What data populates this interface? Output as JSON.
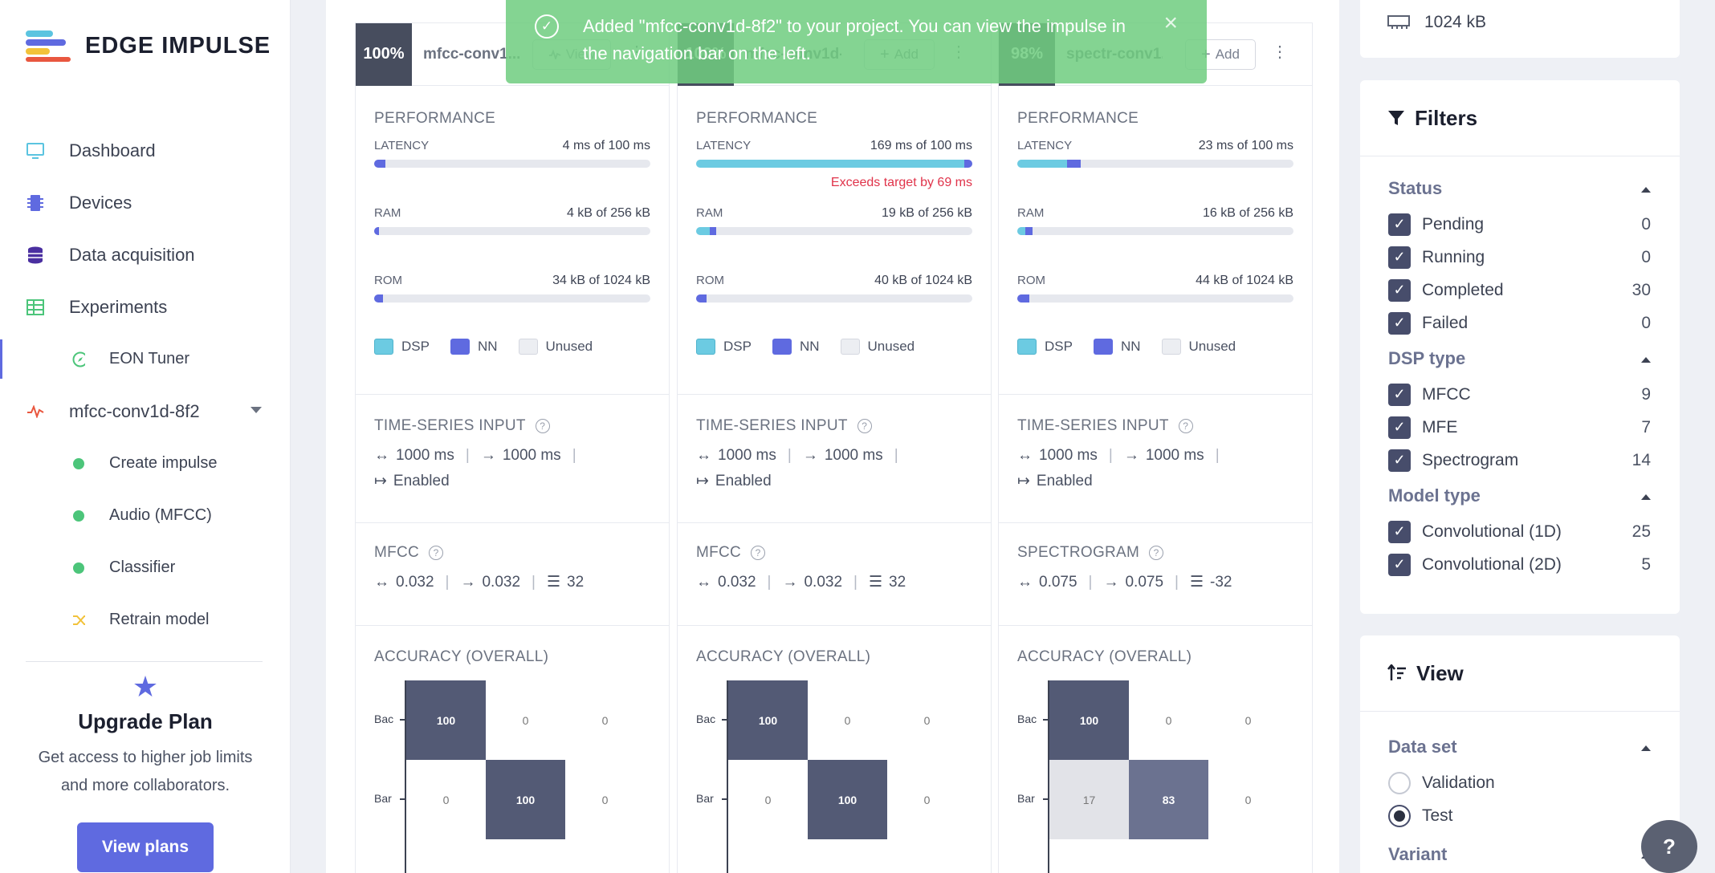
{
  "app": {
    "name": "EDGE IMPULSE"
  },
  "sidebar": {
    "items": [
      {
        "label": "Dashboard",
        "icon": "monitor-icon"
      },
      {
        "label": "Devices",
        "icon": "chip-icon"
      },
      {
        "label": "Data acquisition",
        "icon": "database-icon"
      },
      {
        "label": "Experiments",
        "icon": "table-icon"
      },
      {
        "label": "EON Tuner",
        "icon": "compass-icon"
      },
      {
        "label": "mfcc-conv1d-8f2",
        "icon": "pulse-icon"
      },
      {
        "label": "Create impulse"
      },
      {
        "label": "Audio (MFCC)"
      },
      {
        "label": "Classifier"
      },
      {
        "label": "Retrain model",
        "icon": "shuffle-icon"
      }
    ],
    "upgrade": {
      "title": "Upgrade Plan",
      "text": "Get access to higher job limits and more collaborators.",
      "button": "View plans"
    }
  },
  "toast": {
    "message": "Added \"mfcc-conv1d-8f2\" to your project. You can view the impulse in the navigation bar on the left."
  },
  "cards": [
    {
      "score": "100%",
      "name": "mfcc-conv1...",
      "action": "View",
      "perf_title": "PERFORMANCE",
      "latency": {
        "label": "LATENCY",
        "value": "4 ms of 100 ms",
        "warning": "",
        "dsp": 0,
        "nn": 0.04
      },
      "ram": {
        "label": "RAM",
        "value": "4 kB of 256 kB",
        "dsp": 0,
        "nn": 0.016
      },
      "rom": {
        "label": "ROM",
        "value": "34 kB of 1024 kB",
        "dsp": 0,
        "nn": 0.033
      },
      "legend": [
        "DSP",
        "NN",
        "Unused"
      ],
      "ts_title": "TIME-SERIES INPUT",
      "window": "1000 ms",
      "stride": "1000 ms",
      "zero_pad": "Enabled",
      "dsp_title": "MFCC",
      "p1": "0.032",
      "p2": "0.032",
      "p3": "32",
      "acc_title": "ACCURACY (OVERALL)",
      "rows": [
        "Bac",
        "Bar"
      ],
      "matrix": [
        [
          "100",
          "0",
          "0"
        ],
        [
          "0",
          "100",
          "0"
        ]
      ]
    },
    {
      "score": "100%",
      "name": "mfcc-conv1d-...",
      "action": "Add",
      "perf_title": "PERFORMANCE",
      "latency": {
        "label": "LATENCY",
        "value": "169 ms of 100 ms",
        "warning": "Exceeds target by 69 ms",
        "dsp": 0.97,
        "nn": 0.03
      },
      "ram": {
        "label": "RAM",
        "value": "19 kB of 256 kB",
        "dsp": 0.05,
        "nn": 0.024
      },
      "rom": {
        "label": "ROM",
        "value": "40 kB of 1024 kB",
        "dsp": 0,
        "nn": 0.039
      },
      "legend": [
        "DSP",
        "NN",
        "Unused"
      ],
      "ts_title": "TIME-SERIES INPUT",
      "window": "1000 ms",
      "stride": "1000 ms",
      "zero_pad": "Enabled",
      "dsp_title": "MFCC",
      "p1": "0.032",
      "p2": "0.032",
      "p3": "32",
      "acc_title": "ACCURACY (OVERALL)",
      "rows": [
        "Bac",
        "Bar"
      ],
      "matrix": [
        [
          "100",
          "0",
          "0"
        ],
        [
          "0",
          "100",
          "0"
        ]
      ]
    },
    {
      "score": "98%",
      "name": "spectr-conv1...",
      "action": "Add",
      "perf_title": "PERFORMANCE",
      "latency": {
        "label": "LATENCY",
        "value": "23 ms of 100 ms",
        "warning": "",
        "dsp": 0.18,
        "nn": 0.05
      },
      "ram": {
        "label": "RAM",
        "value": "16 kB of 256 kB",
        "dsp": 0.03,
        "nn": 0.025
      },
      "rom": {
        "label": "ROM",
        "value": "44 kB of 1024 kB",
        "dsp": 0,
        "nn": 0.043
      },
      "legend": [
        "DSP",
        "NN",
        "Unused"
      ],
      "ts_title": "TIME-SERIES INPUT",
      "window": "1000 ms",
      "stride": "1000 ms",
      "zero_pad": "Enabled",
      "dsp_title": "SPECTROGRAM",
      "p1": "0.075",
      "p2": "0.075",
      "p3": "-32",
      "acc_title": "ACCURACY (OVERALL)",
      "rows": [
        "Bac",
        "Bar"
      ],
      "matrix": [
        [
          "100",
          "0",
          "0"
        ],
        [
          "17",
          "83",
          "0"
        ]
      ]
    }
  ],
  "right": {
    "rom_limit": "1024 kB",
    "filters": {
      "title": "Filters",
      "groups": [
        {
          "title": "Status",
          "items": [
            {
              "label": "Pending",
              "count": "0"
            },
            {
              "label": "Running",
              "count": "0"
            },
            {
              "label": "Completed",
              "count": "30"
            },
            {
              "label": "Failed",
              "count": "0"
            }
          ]
        },
        {
          "title": "DSP type",
          "items": [
            {
              "label": "MFCC",
              "count": "9"
            },
            {
              "label": "MFE",
              "count": "7"
            },
            {
              "label": "Spectrogram",
              "count": "14"
            }
          ]
        },
        {
          "title": "Model type",
          "items": [
            {
              "label": "Convolutional (1D)",
              "count": "25"
            },
            {
              "label": "Convolutional (2D)",
              "count": "5"
            }
          ]
        }
      ]
    },
    "view": {
      "title": "View",
      "dataset_title": "Data set",
      "options": [
        "Validation",
        "Test"
      ],
      "selected": "Test",
      "variant_title": "Variant"
    }
  },
  "colors": {
    "accent": "#5f6ae0",
    "dsp": "#6ccbe2",
    "nn": "#5f6ae0",
    "toast": "#70cd80",
    "warning": "#e0334a"
  }
}
